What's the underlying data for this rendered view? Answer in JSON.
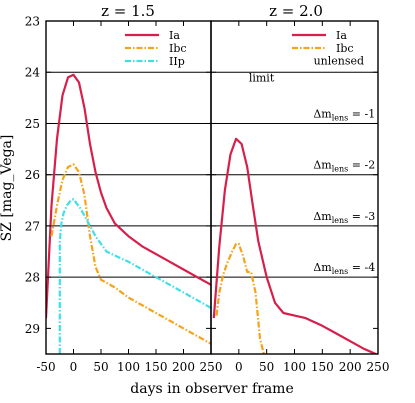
{
  "chart_data": [
    {
      "type": "line",
      "title": "z = 1.5",
      "xlabel": "days in observer frame",
      "ylabel": "SZ [mag_Vega]",
      "xlim": [
        -50,
        250
      ],
      "ylim": [
        29.5,
        23
      ],
      "y_inverted": true,
      "grid": false,
      "legend_position": "top-right",
      "xticks": [
        -50,
        0,
        50,
        100,
        150,
        200,
        250
      ],
      "yticks": [
        23,
        24,
        25,
        26,
        27,
        28,
        29
      ],
      "hlines": [
        24,
        25,
        26,
        27,
        28
      ],
      "series": [
        {
          "name": "Ia",
          "color": "#d6204b",
          "dash": "solid",
          "x": [
            -50,
            -40,
            -30,
            -20,
            -10,
            0,
            10,
            20,
            30,
            40,
            50,
            60,
            75,
            100,
            125,
            150,
            175,
            200,
            225,
            250
          ],
          "y": [
            28.8,
            26.6,
            25.3,
            24.45,
            24.1,
            24.05,
            24.2,
            24.7,
            25.4,
            25.95,
            26.35,
            26.65,
            26.95,
            27.2,
            27.4,
            27.55,
            27.7,
            27.85,
            28.0,
            28.15
          ]
        },
        {
          "name": "Ibc",
          "color": "#f5a31a",
          "dash": "dashdot",
          "x": [
            -40,
            -30,
            -20,
            -10,
            0,
            10,
            20,
            30,
            40,
            50,
            75,
            100,
            125,
            150,
            175,
            200,
            225,
            250
          ],
          "y": [
            27.2,
            26.6,
            26.1,
            25.85,
            25.8,
            25.95,
            26.4,
            27.2,
            27.8,
            28.05,
            28.2,
            28.4,
            28.55,
            28.7,
            28.85,
            29.0,
            29.15,
            29.3
          ]
        },
        {
          "name": "IIp",
          "color": "#3ee0e6",
          "dash": "dashdot",
          "x": [
            -25,
            -25,
            -22,
            -18,
            -12,
            -5,
            0,
            5,
            12,
            20,
            30,
            40,
            50,
            60,
            80,
            100,
            125,
            150,
            175,
            200,
            225,
            250
          ],
          "y": [
            29.5,
            27.3,
            26.95,
            26.75,
            26.6,
            26.5,
            26.48,
            26.55,
            26.65,
            26.8,
            27.0,
            27.2,
            27.35,
            27.5,
            27.6,
            27.7,
            27.85,
            28.0,
            28.15,
            28.3,
            28.45,
            28.6
          ]
        }
      ]
    },
    {
      "type": "line",
      "title": "z = 2.0",
      "xlabel": "days in observer frame",
      "xlim": [
        -50,
        250
      ],
      "ylim": [
        29.5,
        23
      ],
      "y_inverted": true,
      "grid": false,
      "legend_position": "top-right",
      "xticks": [
        0,
        50,
        100,
        150,
        200,
        250
      ],
      "hlines": [
        24,
        25,
        26,
        27,
        28
      ],
      "annotations": [
        {
          "text": "unlensed",
          "x": 225,
          "y": 23.85
        },
        {
          "text": "limit",
          "x": 18,
          "y": 24.18
        },
        {
          "text": "Δm",
          "sub": "lens",
          "value": " = -1",
          "x": 245,
          "y": 24.88
        },
        {
          "text": "Δm",
          "sub": "lens",
          "value": " = -2",
          "x": 245,
          "y": 25.88
        },
        {
          "text": "Δm",
          "sub": "lens",
          "value": " = -3",
          "x": 245,
          "y": 26.88
        },
        {
          "text": "Δm",
          "sub": "lens",
          "value": " = -4",
          "x": 245,
          "y": 27.88
        }
      ],
      "series": [
        {
          "name": "Ia",
          "color": "#d6204b",
          "dash": "solid",
          "x": [
            -45,
            -35,
            -25,
            -15,
            -5,
            5,
            15,
            25,
            35,
            50,
            65,
            80,
            100,
            120,
            140,
            150,
            175,
            200,
            225,
            250
          ],
          "y": [
            28.8,
            27.4,
            26.3,
            25.6,
            25.3,
            25.4,
            25.85,
            26.6,
            27.3,
            28.0,
            28.5,
            28.7,
            28.75,
            28.8,
            28.9,
            28.95,
            29.1,
            29.25,
            29.4,
            29.52
          ]
        },
        {
          "name": "Ibc",
          "color": "#f5a31a",
          "dash": "dashdot",
          "x": [
            -40,
            -35,
            -28,
            -20,
            -12,
            -5,
            0,
            8,
            15,
            22,
            30,
            38,
            45
          ],
          "y": [
            28.75,
            28.3,
            27.95,
            27.7,
            27.5,
            27.35,
            27.35,
            27.6,
            27.9,
            27.9,
            28.3,
            29.2,
            29.5
          ]
        }
      ]
    }
  ]
}
